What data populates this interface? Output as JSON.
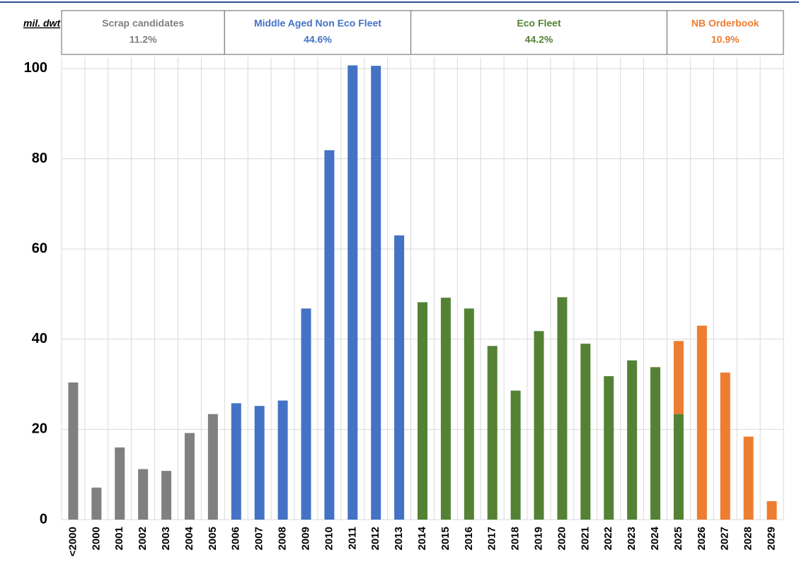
{
  "chart_data": {
    "type": "bar",
    "y_label": "mil. dwt",
    "categories": [
      "<2000",
      "2000",
      "2001",
      "2002",
      "2003",
      "2004",
      "2005",
      "2006",
      "2007",
      "2008",
      "2009",
      "2010",
      "2011",
      "2012",
      "2013",
      "2014",
      "2015",
      "2016",
      "2017",
      "2018",
      "2019",
      "2020",
      "2021",
      "2022",
      "2023",
      "2024",
      "2025",
      "2026",
      "2027",
      "2028",
      "2029"
    ],
    "series": [
      {
        "name": "Scrap candidates",
        "share": "11.2%",
        "color": "#808080",
        "values": [
          30.4,
          7.1,
          16.0,
          11.2,
          10.8,
          19.2,
          23.4,
          null,
          null,
          null,
          null,
          null,
          null,
          null,
          null,
          null,
          null,
          null,
          null,
          null,
          null,
          null,
          null,
          null,
          null,
          null,
          null,
          null,
          null,
          null,
          null
        ]
      },
      {
        "name": "Middle Aged Non Eco Fleet",
        "share": "44.6%",
        "color": "#4472c4",
        "values": [
          null,
          null,
          null,
          null,
          null,
          null,
          null,
          25.8,
          25.2,
          26.4,
          46.8,
          81.9,
          100.7,
          100.6,
          63.0,
          null,
          null,
          null,
          null,
          null,
          null,
          null,
          null,
          null,
          null,
          null,
          null,
          null,
          null,
          null,
          null
        ]
      },
      {
        "name": "Eco Fleet",
        "share": "44.2%",
        "color": "#548235",
        "values": [
          null,
          null,
          null,
          null,
          null,
          null,
          null,
          null,
          null,
          null,
          null,
          null,
          null,
          null,
          null,
          48.2,
          49.2,
          46.8,
          38.5,
          28.6,
          41.8,
          49.3,
          39.0,
          31.8,
          35.3,
          33.8,
          23.4,
          null,
          null,
          null,
          null
        ]
      },
      {
        "name": "NB Orderbook",
        "share": "10.9%",
        "color": "#ed7d31",
        "values": [
          null,
          null,
          null,
          null,
          null,
          null,
          null,
          null,
          null,
          null,
          null,
          null,
          null,
          null,
          null,
          null,
          null,
          null,
          null,
          null,
          null,
          null,
          null,
          null,
          null,
          null,
          16.2,
          43.0,
          32.6,
          18.4,
          4.1
        ]
      }
    ],
    "stacked": true,
    "ylim": [
      0,
      102.5
    ],
    "yticks": [
      0,
      20,
      40,
      60,
      80,
      100
    ],
    "grid": true
  }
}
